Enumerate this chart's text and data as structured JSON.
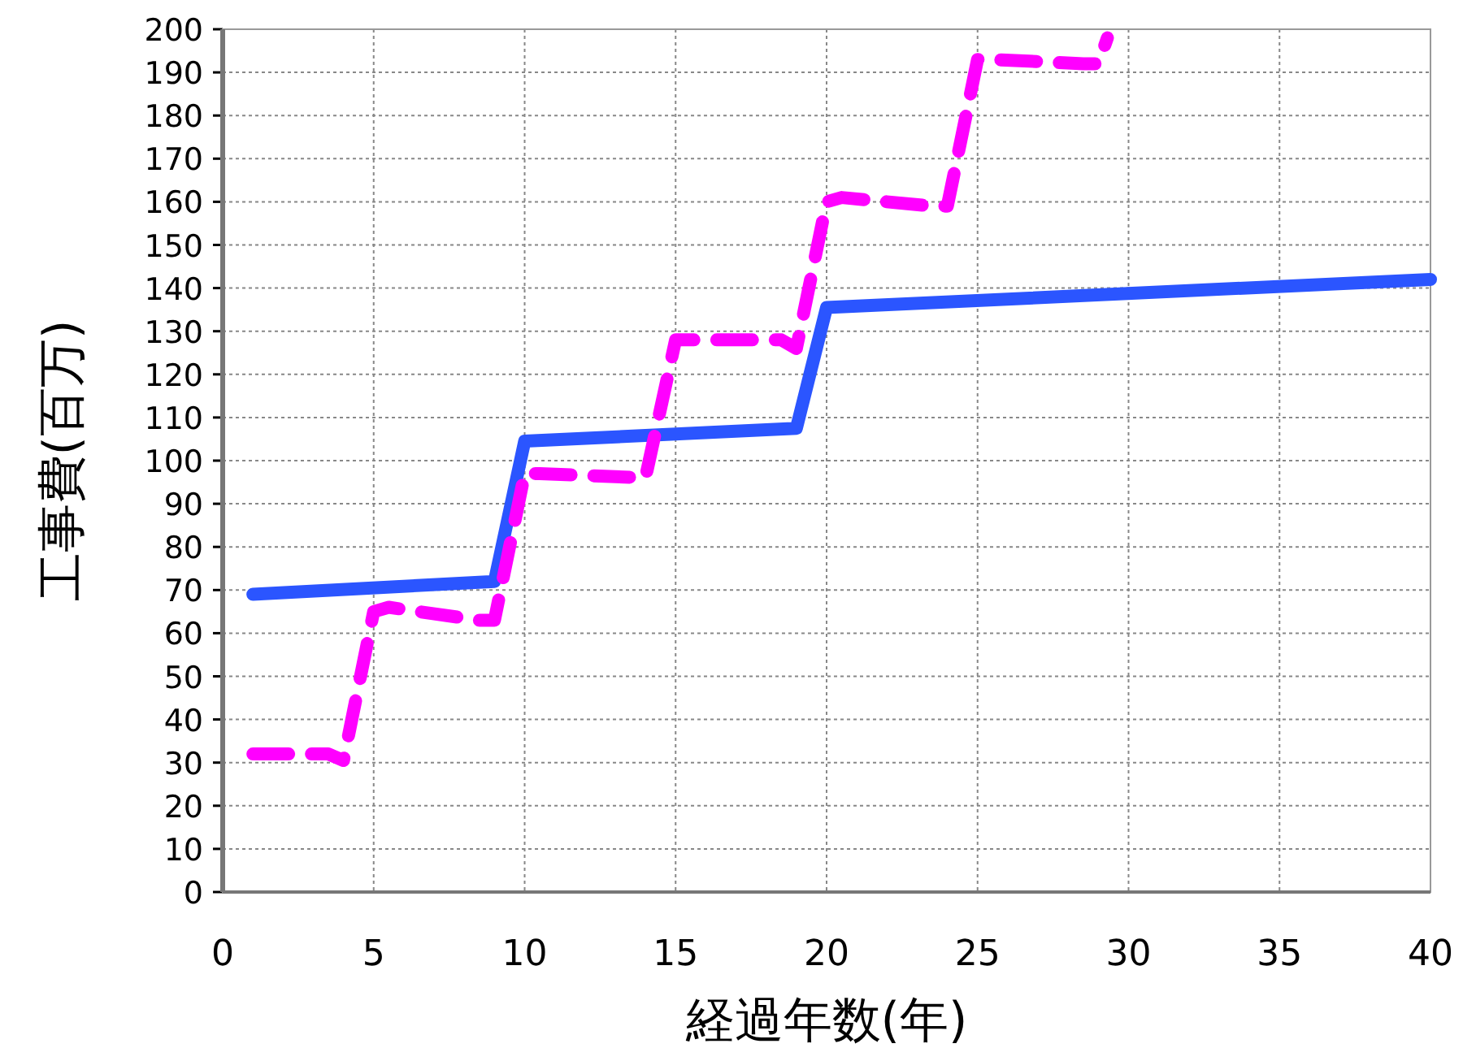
{
  "chart_data": {
    "type": "line",
    "xlabel": "経過年数(年)",
    "ylabel": "工事費(百万)",
    "xlim": [
      0,
      40
    ],
    "xticks": [
      0,
      5,
      10,
      15,
      20,
      25,
      30,
      35,
      40
    ],
    "ylim": [
      0,
      200
    ],
    "yticks": [
      0,
      10,
      20,
      30,
      40,
      50,
      60,
      70,
      80,
      90,
      100,
      110,
      120,
      130,
      140,
      150,
      160,
      170,
      180,
      190,
      200
    ],
    "grid": true,
    "marker": "none",
    "series": [
      {
        "color": "#2b55ff",
        "line_style": "solid",
        "x": [
          1,
          9,
          10,
          19,
          20,
          40
        ],
        "values": [
          69,
          72,
          104.5,
          107.5,
          135.5,
          142
        ]
      },
      {
        "color": "#ff00ff",
        "line_style": "dashed",
        "x": [
          1,
          3.5,
          4,
          5,
          5.5,
          8.5,
          9,
          10,
          10.5,
          14,
          15,
          18.5,
          19,
          20,
          20.5,
          23.5,
          24,
          25,
          25.5,
          28.5,
          29,
          29.3
        ],
        "values": [
          32,
          32,
          30.5,
          65,
          66,
          63,
          63,
          97,
          97,
          96,
          128,
          128,
          126,
          160,
          161,
          159,
          159,
          193,
          193,
          192,
          192,
          198
        ]
      }
    ]
  }
}
